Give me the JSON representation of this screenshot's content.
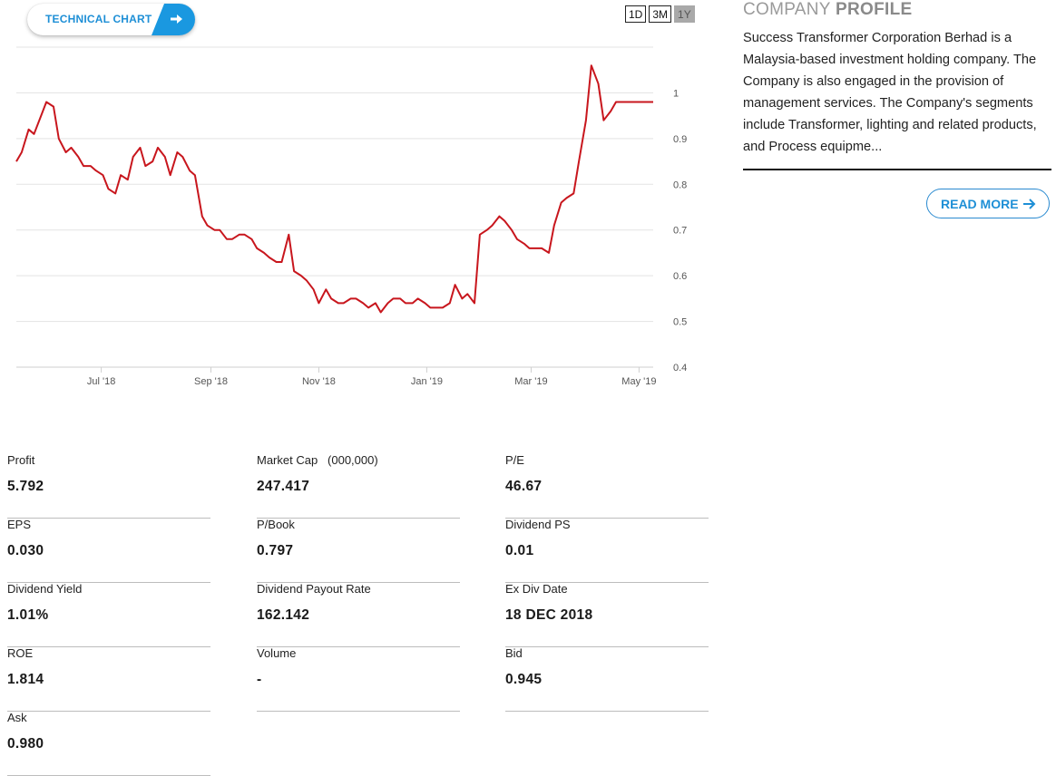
{
  "technical_chart_button": {
    "label": "TECHNICAL CHART",
    "arrow_icon": "arrow-right-icon"
  },
  "range_buttons": [
    {
      "label": "1D",
      "active": false
    },
    {
      "label": "3M",
      "active": false
    },
    {
      "label": "1Y",
      "active": true
    }
  ],
  "chart_data": {
    "type": "line",
    "series": [
      {
        "color": "#c8161d",
        "x": [
          "2018-05-14",
          "2018-05-17",
          "2018-05-21",
          "2018-05-24",
          "2018-05-28",
          "2018-05-31",
          "2018-06-04",
          "2018-06-07",
          "2018-06-11",
          "2018-06-14",
          "2018-06-18",
          "2018-06-21",
          "2018-06-25",
          "2018-06-28",
          "2018-07-02",
          "2018-07-05",
          "2018-07-09",
          "2018-07-12",
          "2018-07-16",
          "2018-07-19",
          "2018-07-23",
          "2018-07-26",
          "2018-07-30",
          "2018-08-02",
          "2018-08-06",
          "2018-08-09",
          "2018-08-13",
          "2018-08-16",
          "2018-08-20",
          "2018-08-23",
          "2018-08-27",
          "2018-08-30",
          "2018-09-03",
          "2018-09-06",
          "2018-09-10",
          "2018-09-13",
          "2018-09-17",
          "2018-09-20",
          "2018-09-24",
          "2018-09-27",
          "2018-10-01",
          "2018-10-04",
          "2018-10-08",
          "2018-10-11",
          "2018-10-15",
          "2018-10-18",
          "2018-10-22",
          "2018-10-25",
          "2018-10-29",
          "2018-11-01",
          "2018-11-05",
          "2018-11-08",
          "2018-11-12",
          "2018-11-15",
          "2018-11-19",
          "2018-11-22",
          "2018-11-26",
          "2018-11-29",
          "2018-12-03",
          "2018-12-06",
          "2018-12-10",
          "2018-12-13",
          "2018-12-17",
          "2018-12-20",
          "2018-12-24",
          "2018-12-27",
          "2018-12-31",
          "2019-01-03",
          "2019-01-07",
          "2019-01-10",
          "2019-01-14",
          "2019-01-17",
          "2019-01-21",
          "2019-01-24",
          "2019-01-28",
          "2019-01-31",
          "2019-02-04",
          "2019-02-07",
          "2019-02-11",
          "2019-02-14",
          "2019-02-18",
          "2019-02-21",
          "2019-02-25",
          "2019-02-28",
          "2019-03-04",
          "2019-03-07",
          "2019-03-11",
          "2019-03-14",
          "2019-03-18",
          "2019-03-21",
          "2019-03-25",
          "2019-03-28",
          "2019-04-01",
          "2019-04-04",
          "2019-04-08",
          "2019-04-11",
          "2019-04-15",
          "2019-04-18",
          "2019-04-22",
          "2019-04-25",
          "2019-04-29",
          "2019-05-02",
          "2019-05-06",
          "2019-05-09"
        ],
        "y": [
          0.85,
          0.87,
          0.92,
          0.91,
          0.95,
          0.98,
          0.97,
          0.9,
          0.87,
          0.88,
          0.86,
          0.84,
          0.84,
          0.83,
          0.82,
          0.79,
          0.78,
          0.82,
          0.81,
          0.86,
          0.88,
          0.84,
          0.85,
          0.88,
          0.86,
          0.82,
          0.87,
          0.86,
          0.83,
          0.82,
          0.73,
          0.71,
          0.7,
          0.7,
          0.68,
          0.68,
          0.69,
          0.69,
          0.68,
          0.66,
          0.65,
          0.64,
          0.63,
          0.63,
          0.69,
          0.61,
          0.6,
          0.59,
          0.57,
          0.54,
          0.57,
          0.55,
          0.54,
          0.54,
          0.55,
          0.55,
          0.54,
          0.53,
          0.54,
          0.52,
          0.54,
          0.55,
          0.55,
          0.54,
          0.54,
          0.55,
          0.54,
          0.53,
          0.53,
          0.53,
          0.54,
          0.58,
          0.55,
          0.56,
          0.54,
          0.69,
          0.7,
          0.71,
          0.73,
          0.72,
          0.7,
          0.68,
          0.67,
          0.66,
          0.66,
          0.66,
          0.65,
          0.71,
          0.76,
          0.77,
          0.78,
          0.85,
          0.94,
          1.06,
          1.02,
          0.94,
          0.96,
          0.98,
          0.98,
          0.98,
          0.98,
          0.98,
          0.98,
          0.98
        ]
      }
    ],
    "xlim": [
      "2018-05-14",
      "2019-05-09"
    ],
    "ylim": [
      0.4,
      1.1
    ],
    "x_ticks": [
      {
        "label": "Jul '18",
        "date": "2018-07-01"
      },
      {
        "label": "Sep '18",
        "date": "2018-09-01"
      },
      {
        "label": "Nov '18",
        "date": "2018-11-01"
      },
      {
        "label": "Jan '19",
        "date": "2019-01-01"
      },
      {
        "label": "Mar '19",
        "date": "2019-03-01"
      },
      {
        "label": "May '19",
        "date": "2019-05-01"
      }
    ],
    "y_ticks": [
      0.4,
      0.5,
      0.6,
      0.7,
      0.8,
      0.9,
      1
    ],
    "y_tick_labels": [
      "0.4",
      "0.5",
      "0.6",
      "0.7",
      "0.8",
      "0.9",
      "1"
    ],
    "grid": true,
    "y_axis_position": "right"
  },
  "profile": {
    "title_light": "COMPANY",
    "title_bold": "PROFILE",
    "description": "Success Transformer Corporation Berhad is a Malaysia-based investment holding company. The Company is also engaged in the provision of management services. The Company's segments include Transformer, lighting and related products, and Process equipme...",
    "read_more_label": "READ MORE",
    "read_more_icon": "arrow-right-icon"
  },
  "stats": [
    {
      "label": "Profit",
      "value": "5.792"
    },
    {
      "label": "Market Cap   (000,000)",
      "value": "247.417"
    },
    {
      "label": "P/E",
      "value": "46.67"
    },
    {
      "label": "EPS",
      "value": "0.030"
    },
    {
      "label": "P/Book",
      "value": "0.797"
    },
    {
      "label": "Dividend PS",
      "value": "0.01"
    },
    {
      "label": "Dividend Yield",
      "value": "1.01%"
    },
    {
      "label": "Dividend Payout Rate",
      "value": "162.142"
    },
    {
      "label": "Ex Div Date",
      "value": "18 DEC 2018"
    },
    {
      "label": "ROE",
      "value": "1.814"
    },
    {
      "label": "Volume",
      "value": "-"
    },
    {
      "label": "Bid",
      "value": "0.945"
    },
    {
      "label": "Ask",
      "value": "0.980"
    }
  ]
}
